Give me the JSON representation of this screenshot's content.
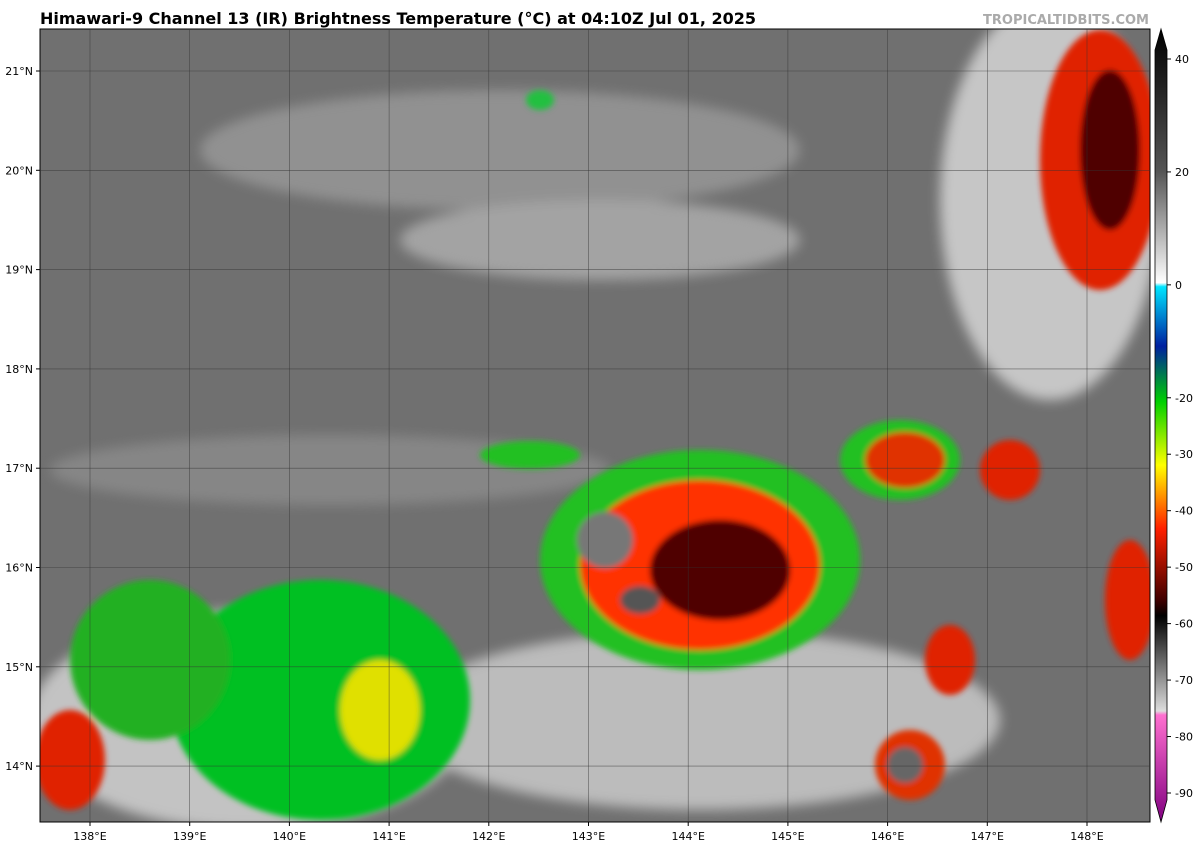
{
  "header": {
    "title": "Himawari-9 Channel 13 (IR) Brightness Temperature (°C) at 04:10Z Jul 01, 2025",
    "watermark": "TROPICALTIDBITS.COM"
  },
  "map": {
    "lat_labels": [
      "21°N",
      "20°N",
      "19°N",
      "18°N",
      "17°N",
      "16°N",
      "15°N",
      "14°N"
    ],
    "lon_labels": [
      "138°E",
      "139°E",
      "140°E",
      "141°E",
      "142°E",
      "143°E",
      "144°E",
      "145°E",
      "146°E",
      "147°E",
      "148°E"
    ]
  },
  "colorbar": {
    "range": [
      -90,
      40
    ],
    "ticks": [
      40,
      20,
      0,
      -20,
      -30,
      -40,
      -50,
      -60,
      -70,
      -80,
      -90
    ]
  }
}
